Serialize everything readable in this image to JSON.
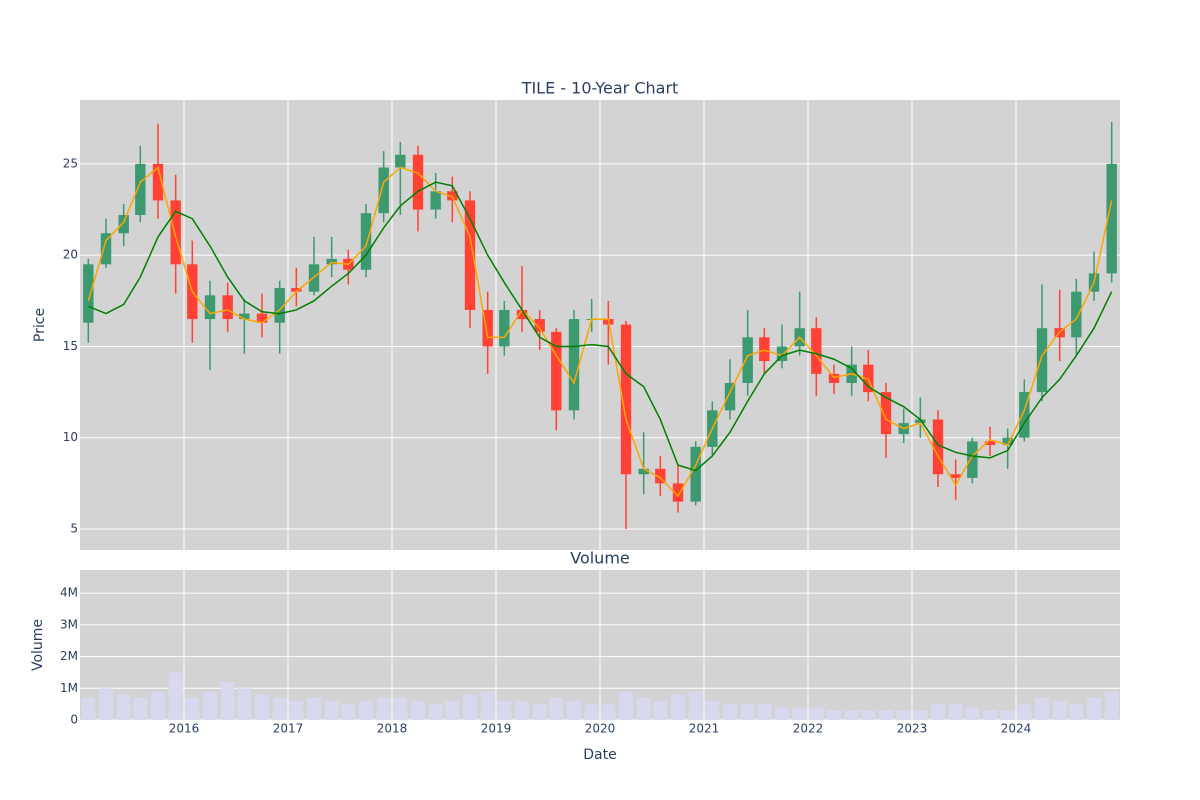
{
  "chart_data": [
    {
      "type": "candlestick",
      "title": "TILE - 10-Year Chart",
      "y_label": "Price",
      "x": [
        2015.08,
        2015.25,
        2015.42,
        2015.58,
        2015.75,
        2015.92,
        2016.08,
        2016.25,
        2016.42,
        2016.58,
        2016.75,
        2016.92,
        2017.08,
        2017.25,
        2017.42,
        2017.58,
        2017.75,
        2017.92,
        2018.08,
        2018.25,
        2018.42,
        2018.58,
        2018.75,
        2018.92,
        2019.08,
        2019.25,
        2019.42,
        2019.58,
        2019.75,
        2019.92,
        2020.08,
        2020.25,
        2020.42,
        2020.58,
        2020.75,
        2020.92,
        2021.08,
        2021.25,
        2021.42,
        2021.58,
        2021.75,
        2021.92,
        2022.08,
        2022.25,
        2022.42,
        2022.58,
        2022.75,
        2022.92,
        2023.08,
        2023.25,
        2023.42,
        2023.58,
        2023.75,
        2023.92,
        2024.08,
        2024.25,
        2024.42,
        2024.58,
        2024.75,
        2024.92
      ],
      "open": [
        16.3,
        19.5,
        21.2,
        22.2,
        25.0,
        23.0,
        19.5,
        16.5,
        17.8,
        16.5,
        16.8,
        16.3,
        18.2,
        18.0,
        19.5,
        19.8,
        19.2,
        22.3,
        24.8,
        25.5,
        22.5,
        23.5,
        23.0,
        17.0,
        15.0,
        17.0,
        16.5,
        15.8,
        11.5,
        16.5,
        16.5,
        16.2,
        8.0,
        8.3,
        7.5,
        6.5,
        9.5,
        11.5,
        13.0,
        15.5,
        14.2,
        15.0,
        16.0,
        13.5,
        13.0,
        14.0,
        12.5,
        10.2,
        10.8,
        11.0,
        8.0,
        7.8,
        9.8,
        9.6,
        10.0,
        12.5,
        16.0,
        15.5,
        18.0,
        19.0
      ],
      "high": [
        19.8,
        22.0,
        22.8,
        26.0,
        27.2,
        24.4,
        20.8,
        18.6,
        18.5,
        17.6,
        17.9,
        18.6,
        19.3,
        21.0,
        21.0,
        20.3,
        22.8,
        25.7,
        26.2,
        26.0,
        24.5,
        24.3,
        23.5,
        18.0,
        17.5,
        19.4,
        17.0,
        16.0,
        17.0,
        17.6,
        17.5,
        16.4,
        10.3,
        9.0,
        8.5,
        9.8,
        12.0,
        14.3,
        17.0,
        16.0,
        16.2,
        18.0,
        16.6,
        14.0,
        15.0,
        14.8,
        13.0,
        11.6,
        12.2,
        11.5,
        8.8,
        10.0,
        10.6,
        10.5,
        13.2,
        18.4,
        18.1,
        18.7,
        20.2,
        27.3
      ],
      "low": [
        15.2,
        19.3,
        20.5,
        21.8,
        22.0,
        17.9,
        15.2,
        13.7,
        15.8,
        14.6,
        15.5,
        14.6,
        17.2,
        17.8,
        18.8,
        18.4,
        18.8,
        21.8,
        22.2,
        21.3,
        22.0,
        21.8,
        16.0,
        13.5,
        14.5,
        15.8,
        14.8,
        10.4,
        11.0,
        15.8,
        14.0,
        5.0,
        6.9,
        6.8,
        5.9,
        6.3,
        9.0,
        11.0,
        12.3,
        13.5,
        13.8,
        14.5,
        12.3,
        12.4,
        12.3,
        12.0,
        8.9,
        9.7,
        10.0,
        7.3,
        6.6,
        7.5,
        9.0,
        8.3,
        9.8,
        12.0,
        14.2,
        14.5,
        17.5,
        18.5
      ],
      "close": [
        19.5,
        21.2,
        22.2,
        25.0,
        23.0,
        19.5,
        16.5,
        17.8,
        16.5,
        16.8,
        16.3,
        18.2,
        18.0,
        19.5,
        19.8,
        19.2,
        22.3,
        24.8,
        25.5,
        22.5,
        23.5,
        23.0,
        17.0,
        15.0,
        17.0,
        16.5,
        15.8,
        11.5,
        16.5,
        16.5,
        16.2,
        8.0,
        8.3,
        7.5,
        6.5,
        9.5,
        11.5,
        13.0,
        15.5,
        14.2,
        15.0,
        16.0,
        13.5,
        13.0,
        14.0,
        12.5,
        10.2,
        10.8,
        11.0,
        8.0,
        7.8,
        9.8,
        9.6,
        10.0,
        12.5,
        16.0,
        15.5,
        18.0,
        19.0,
        25.0
      ],
      "increasing_color": "#3d9970",
      "decreasing_color": "#ff4136",
      "series": [
        {
          "color": "orange",
          "values": [
            17.5,
            20.8,
            21.8,
            24.0,
            24.8,
            21.0,
            18.0,
            16.8,
            17.0,
            16.5,
            16.3,
            17.0,
            18.0,
            18.8,
            19.6,
            19.5,
            20.5,
            24.0,
            24.8,
            24.5,
            23.5,
            23.2,
            21.0,
            15.5,
            15.5,
            17.0,
            16.0,
            14.5,
            13.0,
            16.5,
            16.5,
            11.0,
            8.3,
            7.8,
            6.8,
            8.5,
            10.5,
            12.5,
            14.5,
            14.8,
            14.5,
            15.5,
            14.5,
            13.3,
            13.5,
            13.2,
            11.0,
            10.5,
            10.8,
            9.0,
            7.4,
            9.0,
            9.9,
            9.6,
            11.5,
            14.5,
            15.8,
            16.5,
            18.5,
            23.0
          ]
        },
        {
          "color": "green",
          "values": [
            17.2,
            16.8,
            17.3,
            18.8,
            21.0,
            22.4,
            22.0,
            20.5,
            18.8,
            17.5,
            16.9,
            16.8,
            17.0,
            17.5,
            18.3,
            19.0,
            20.0,
            21.5,
            22.7,
            23.5,
            24.0,
            23.8,
            22.0,
            20.0,
            18.5,
            17.0,
            15.5,
            15.0,
            15.0,
            15.1,
            15.0,
            13.5,
            12.8,
            11.0,
            8.5,
            8.2,
            9.0,
            10.3,
            12.0,
            13.5,
            14.5,
            14.8,
            14.6,
            14.3,
            13.8,
            12.8,
            12.2,
            11.7,
            11.0,
            9.6,
            9.2,
            9.0,
            8.9,
            9.3,
            10.8,
            12.2,
            13.2,
            14.5,
            16.0,
            18.0
          ]
        }
      ],
      "xlim": [
        2015,
        2025
      ],
      "xticks": [
        2016,
        2017,
        2018,
        2019,
        2020,
        2021,
        2022,
        2023,
        2024
      ],
      "ylim": [
        3.85,
        28.5
      ],
      "yticks": [
        5,
        10,
        15,
        20,
        25
      ],
      "grid": true
    },
    {
      "type": "bar",
      "title": "Volume",
      "y_label": "Volume",
      "x_label": "Date",
      "x": [
        2015.08,
        2015.25,
        2015.42,
        2015.58,
        2015.75,
        2015.92,
        2016.08,
        2016.25,
        2016.42,
        2016.58,
        2016.75,
        2016.92,
        2017.08,
        2017.25,
        2017.42,
        2017.58,
        2017.75,
        2017.92,
        2018.08,
        2018.25,
        2018.42,
        2018.58,
        2018.75,
        2018.92,
        2019.08,
        2019.25,
        2019.42,
        2019.58,
        2019.75,
        2019.92,
        2020.08,
        2020.25,
        2020.42,
        2020.58,
        2020.75,
        2020.92,
        2021.08,
        2021.25,
        2021.42,
        2021.58,
        2021.75,
        2021.92,
        2022.08,
        2022.25,
        2022.42,
        2022.58,
        2022.75,
        2022.92,
        2023.08,
        2023.25,
        2023.42,
        2023.58,
        2023.75,
        2023.92,
        2024.08,
        2024.25,
        2024.42,
        2024.58,
        2024.75,
        2024.92
      ],
      "values": [
        700000,
        1000000,
        800000,
        700000,
        900000,
        1500000,
        700000,
        900000,
        1200000,
        1000000,
        800000,
        700000,
        600000,
        700000,
        600000,
        500000,
        600000,
        700000,
        700000,
        600000,
        500000,
        600000,
        800000,
        900000,
        600000,
        600000,
        500000,
        700000,
        600000,
        500000,
        500000,
        900000,
        700000,
        600000,
        800000,
        900000,
        600000,
        500000,
        500000,
        500000,
        400000,
        400000,
        400000,
        300000,
        300000,
        300000,
        300000,
        300000,
        300000,
        500000,
        500000,
        400000,
        300000,
        300000,
        500000,
        700000,
        600000,
        500000,
        700000,
        900000
      ],
      "color": "#d8d8ee",
      "xlim": [
        2015,
        2025
      ],
      "xticks": [
        2016,
        2017,
        2018,
        2019,
        2020,
        2021,
        2022,
        2023,
        2024
      ],
      "ylim": [
        0,
        4730000
      ],
      "yticks": [
        0,
        {
          "value": 1000000,
          "label": "1M"
        },
        {
          "value": 2000000,
          "label": "2M"
        },
        {
          "value": 3000000,
          "label": "3M"
        },
        {
          "value": 4000000,
          "label": "4M"
        }
      ],
      "grid": true
    }
  ]
}
